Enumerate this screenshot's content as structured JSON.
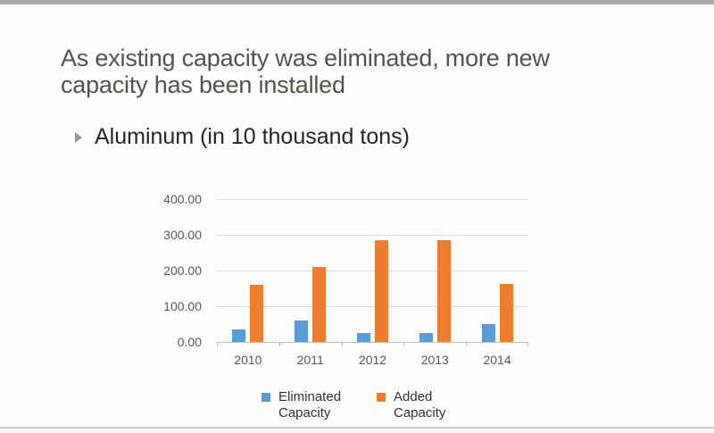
{
  "slide": {
    "title_lines": [
      "As existing capacity was eliminated, more new",
      "capacity has been installed"
    ],
    "bullet_text": "Aluminum (in 10 thousand tons)",
    "colors": {
      "title_text": "#54524C",
      "bullet_text": "#262626",
      "top_bar": "#A9A9A9",
      "bottom_divider": "#C9C9C9",
      "axis_text": "#595959"
    }
  },
  "chart_data": {
    "type": "bar",
    "title": "",
    "xlabel": "",
    "ylabel": "",
    "categories": [
      "2010",
      "2011",
      "2012",
      "2013",
      "2014"
    ],
    "series": [
      {
        "name": "Eliminated Capacity",
        "color": "#5B9BD5",
        "values": [
          35,
          60,
          25,
          26,
          49
        ]
      },
      {
        "name": "Added Capacity",
        "color": "#ED7D31",
        "values": [
          159,
          211,
          286,
          286,
          163
        ]
      }
    ],
    "ylim": [
      0,
      400
    ],
    "y_ticks": [
      "400.00",
      "300.00",
      "200.00",
      "100.00",
      "0.00"
    ],
    "grid": true,
    "legend_position": "bottom"
  }
}
